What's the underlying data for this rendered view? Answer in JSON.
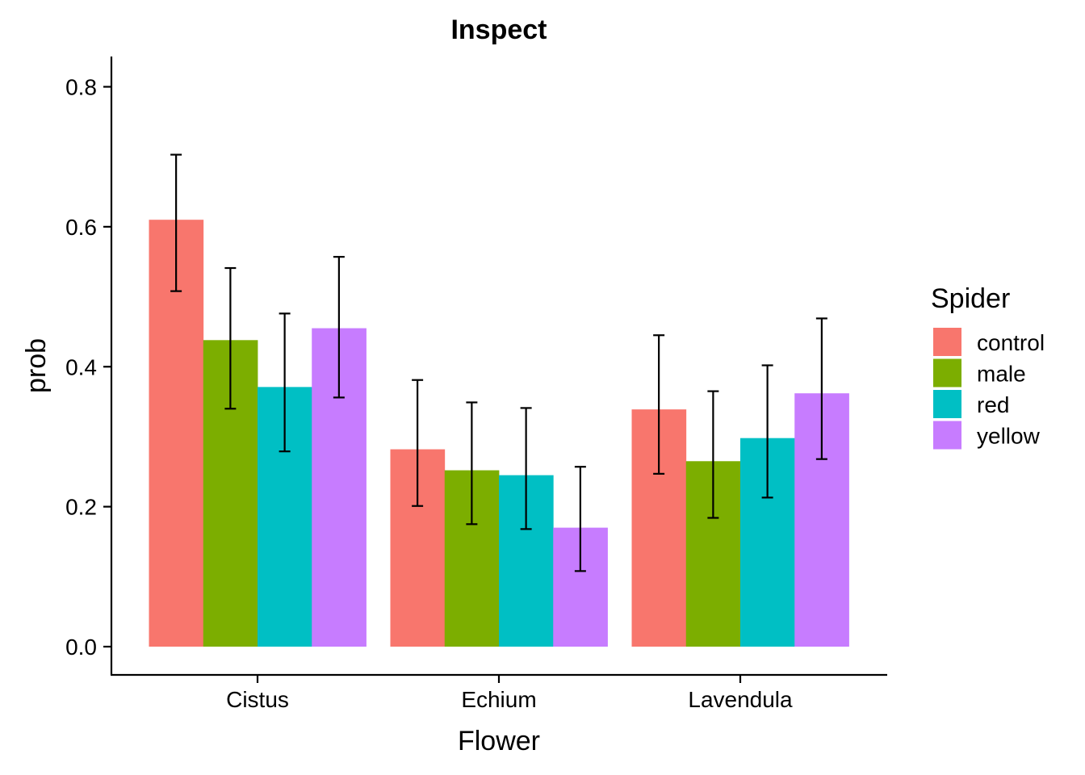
{
  "chart_data": {
    "type": "bar",
    "title": "Inspect",
    "xlabel": "Flower",
    "ylabel": "prob",
    "categories": [
      "Cistus",
      "Echium",
      "Lavendula"
    ],
    "ylim": [
      -0.04,
      0.84
    ],
    "yticks": [
      0.0,
      0.2,
      0.4,
      0.6,
      0.8
    ],
    "ytick_labels": [
      "0.0",
      "0.2",
      "0.4",
      "0.6",
      "0.8"
    ],
    "grid": false,
    "legend": {
      "title": "Spider",
      "position": "right"
    },
    "series": [
      {
        "name": "control",
        "color": "#F8766D",
        "values": [
          0.61,
          0.282,
          0.339
        ],
        "lower": [
          0.508,
          0.201,
          0.247
        ],
        "upper": [
          0.703,
          0.381,
          0.445
        ]
      },
      {
        "name": "male",
        "color": "#7CAE00",
        "values": [
          0.438,
          0.252,
          0.265
        ],
        "lower": [
          0.34,
          0.175,
          0.184
        ],
        "upper": [
          0.541,
          0.349,
          0.365
        ]
      },
      {
        "name": "red",
        "color": "#00BFC4",
        "values": [
          0.371,
          0.245,
          0.298
        ],
        "lower": [
          0.279,
          0.168,
          0.213
        ],
        "upper": [
          0.476,
          0.341,
          0.402
        ]
      },
      {
        "name": "yellow",
        "color": "#C77CFF",
        "values": [
          0.455,
          0.17,
          0.362
        ],
        "lower": [
          0.356,
          0.108,
          0.268
        ],
        "upper": [
          0.557,
          0.257,
          0.469
        ]
      }
    ]
  }
}
